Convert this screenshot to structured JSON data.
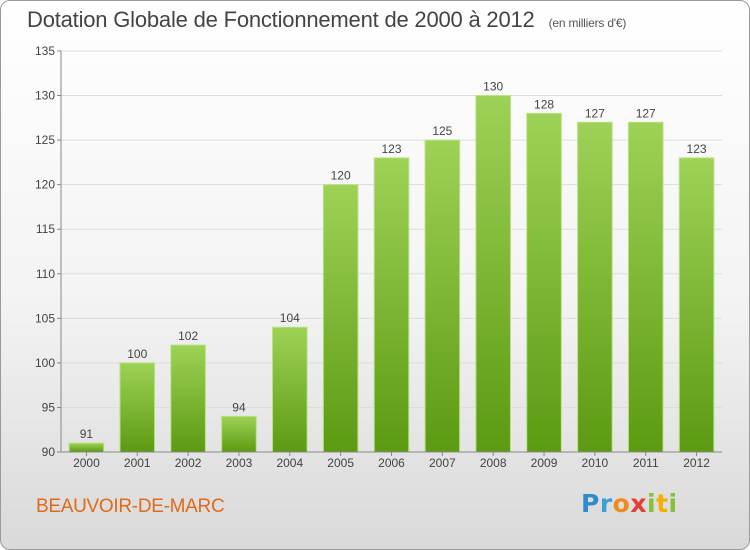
{
  "header": {
    "title": "Dotation Globale de Fonctionnement de 2000 à 2012",
    "unit": "(en milliers d'€)"
  },
  "footer": {
    "town": "BEAUVOIR-DE-MARC",
    "logo": "Proxiti"
  },
  "colors": {
    "bar_top": "#9ed257",
    "bar_bottom": "#5c9a12",
    "axis": "#888888",
    "grid": "#dddddd",
    "text": "#444444"
  },
  "chart_data": {
    "type": "bar",
    "title": "Dotation Globale de Fonctionnement de 2000 à 2012",
    "subtitle": "(en milliers d'€)",
    "xlabel": "",
    "ylabel": "",
    "categories": [
      "2000",
      "2001",
      "2002",
      "2003",
      "2004",
      "2005",
      "2006",
      "2007",
      "2008",
      "2009",
      "2010",
      "2011",
      "2012"
    ],
    "values": [
      91,
      100,
      102,
      94,
      104,
      120,
      123,
      125,
      130,
      128,
      127,
      127,
      123
    ],
    "ylim": [
      90,
      135
    ],
    "yticks": [
      90,
      95,
      100,
      105,
      110,
      115,
      120,
      125,
      130,
      135
    ],
    "grid": true,
    "data_labels": true
  }
}
